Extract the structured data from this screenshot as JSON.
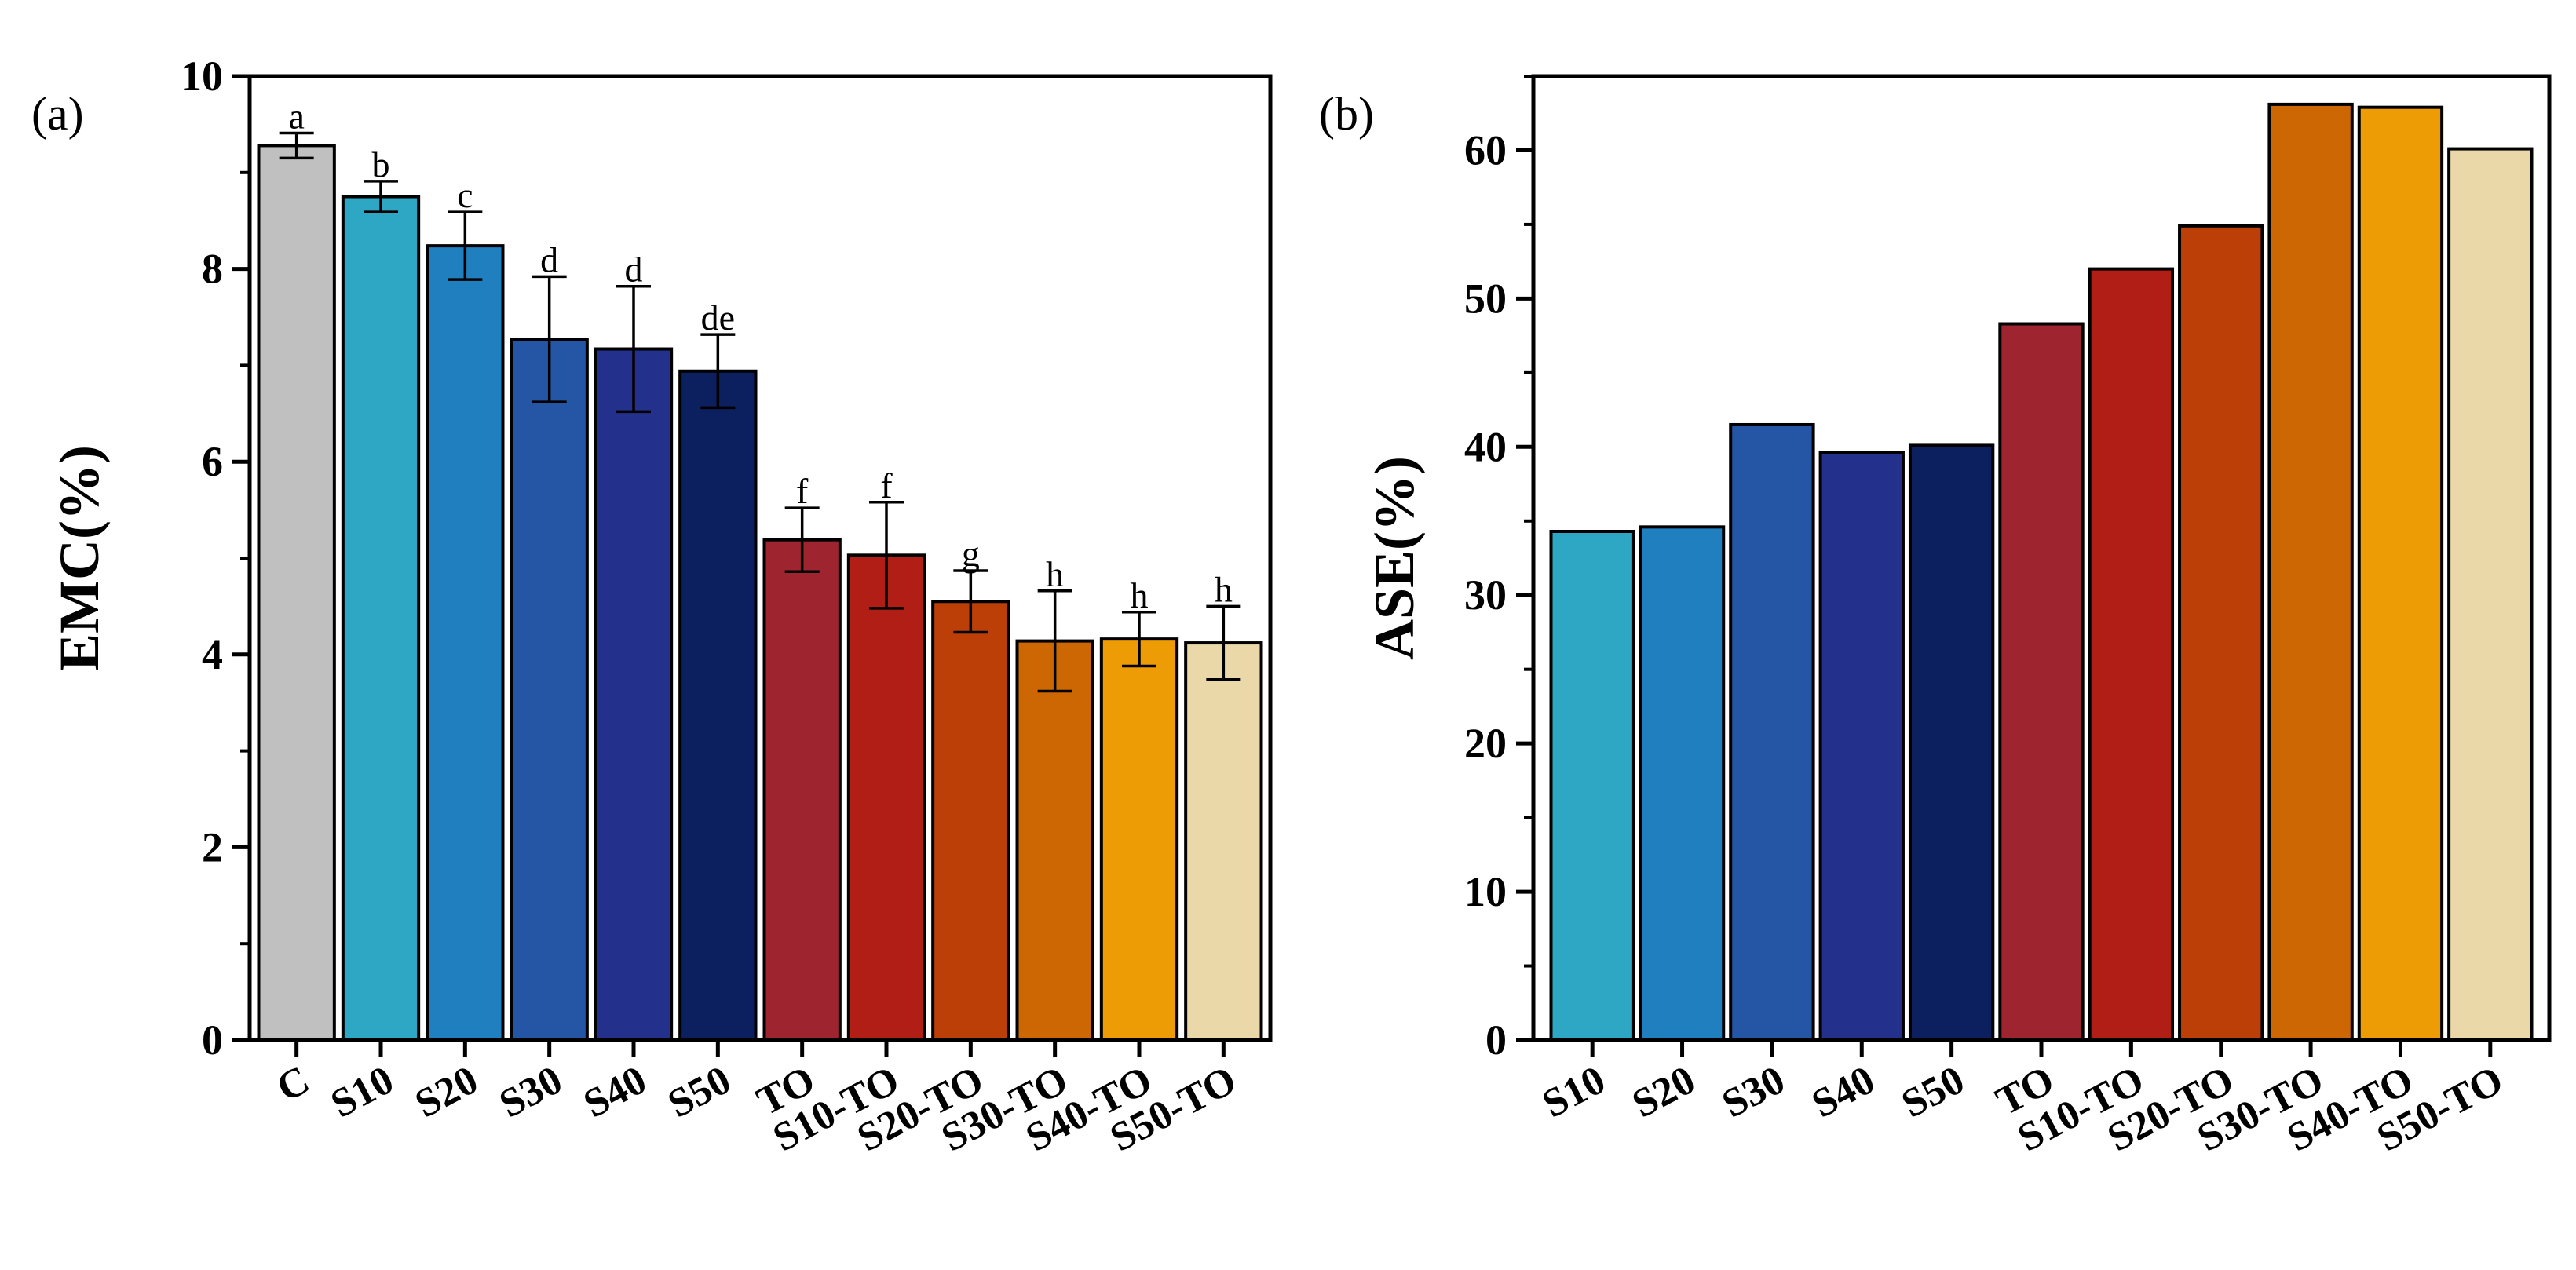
{
  "chart_data": [
    {
      "type": "bar",
      "panel_label": "(a)",
      "ylabel": "EMC(%)",
      "xlabel": "",
      "ylim": [
        0,
        10
      ],
      "yticks": [
        0,
        2,
        4,
        6,
        8,
        10
      ],
      "categories": [
        "C",
        "S10",
        "S20",
        "S30",
        "S40",
        "S50",
        "TO",
        "S10-TO",
        "S20-TO",
        "S30-TO",
        "S40-TO",
        "S50-TO"
      ],
      "values": [
        9.28,
        8.75,
        8.24,
        7.27,
        7.17,
        6.94,
        5.19,
        5.03,
        4.55,
        4.14,
        4.16,
        4.12
      ],
      "errors": [
        0.13,
        0.16,
        0.35,
        0.65,
        0.65,
        0.38,
        0.33,
        0.55,
        0.32,
        0.52,
        0.28,
        0.38
      ],
      "significance": [
        "a",
        "b",
        "c",
        "d",
        "d",
        "de",
        "f",
        "f",
        "g",
        "h",
        "h",
        "h"
      ],
      "colors": [
        "#c0c0c0",
        "#2ea7c5",
        "#1f7fbf",
        "#2556a6",
        "#23308c",
        "#0c1f5e",
        "#9e2430",
        "#b01e16",
        "#bd3f08",
        "#cc6703",
        "#ee9c06",
        "#ebd8a8"
      ],
      "grid": false,
      "legend": "none"
    },
    {
      "type": "bar",
      "panel_label": "(b)",
      "ylabel": "ASE(%)",
      "xlabel": "",
      "ylim": [
        0,
        65
      ],
      "yticks": [
        0,
        10,
        20,
        30,
        40,
        50,
        60
      ],
      "categories": [
        "S10",
        "S20",
        "S30",
        "S40",
        "S50",
        "TO",
        "S10-TO",
        "S20-TO",
        "S30-TO",
        "S40-TO",
        "S50-TO"
      ],
      "values": [
        34.3,
        34.6,
        41.5,
        39.6,
        40.1,
        48.3,
        52.0,
        54.9,
        63.1,
        62.9,
        60.1
      ],
      "colors": [
        "#2ea7c5",
        "#1f7fbf",
        "#2556a6",
        "#23308c",
        "#0c1f5e",
        "#9e2430",
        "#b01e16",
        "#bd3f08",
        "#cc6703",
        "#ee9c06",
        "#ebd8a8"
      ],
      "grid": false,
      "legend": "none"
    }
  ]
}
